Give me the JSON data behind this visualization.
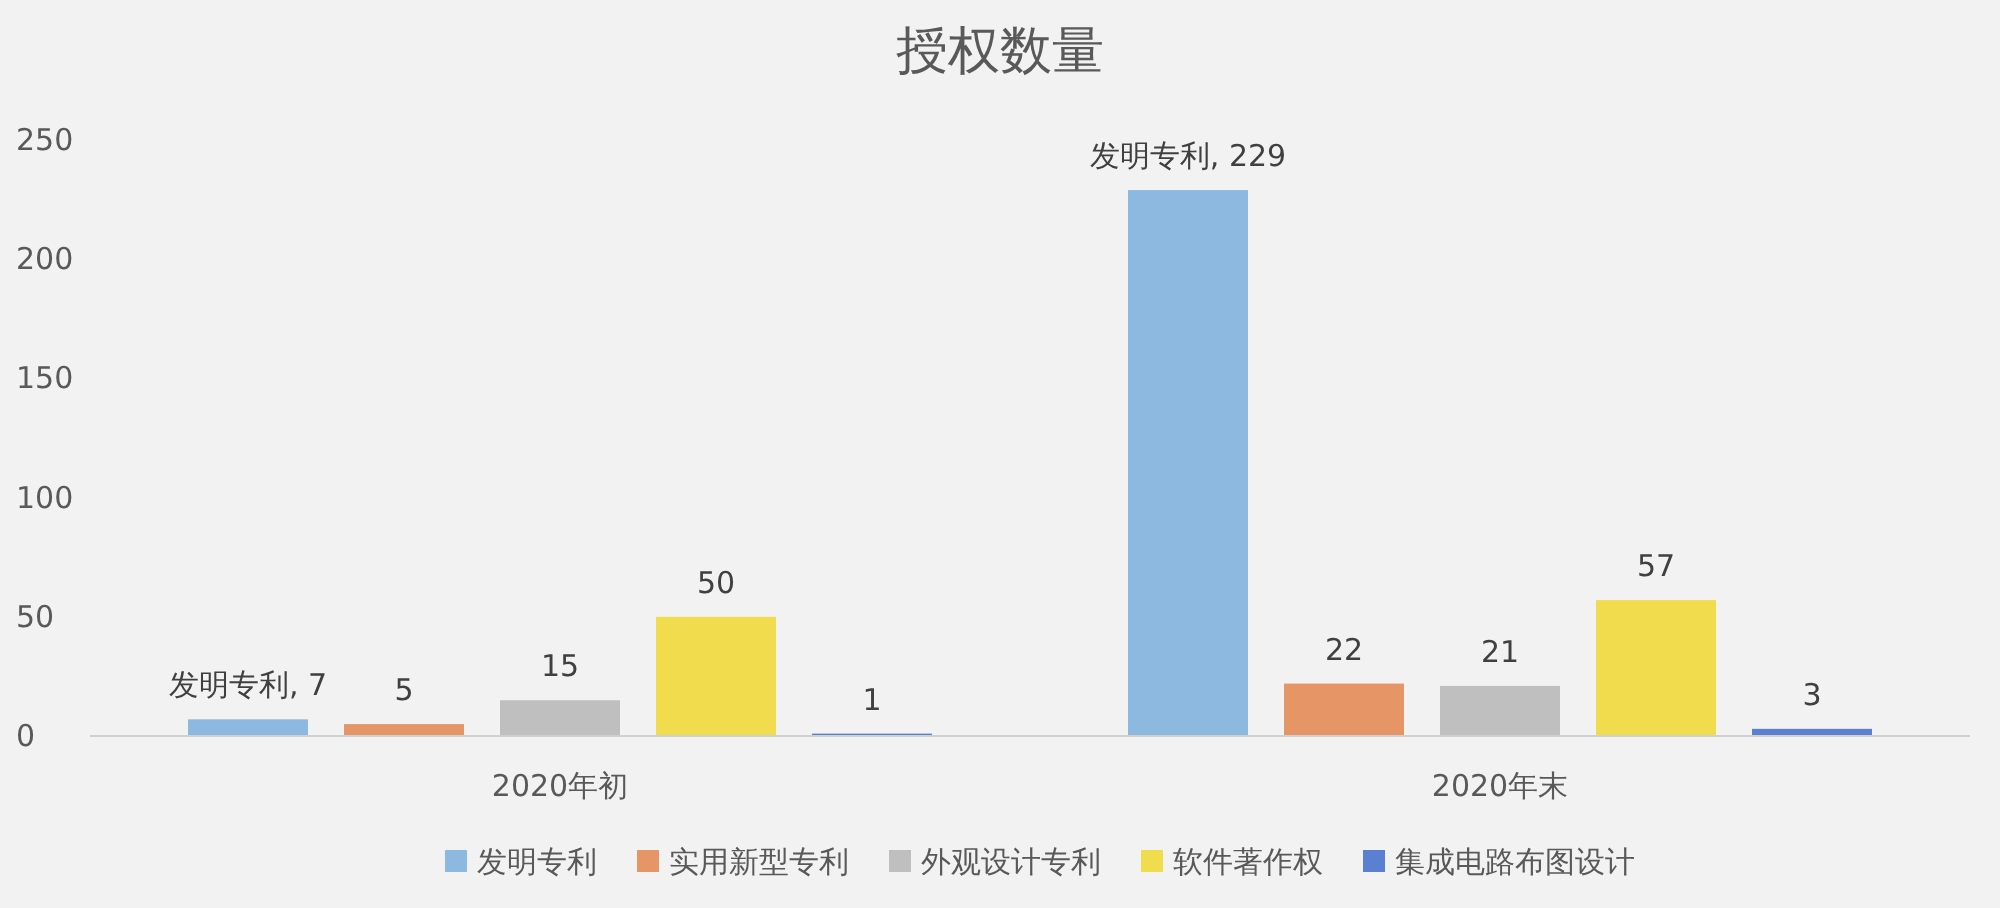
{
  "chart_data": {
    "type": "bar",
    "title": "授权数量",
    "categories": [
      "2020年初",
      "2020年末"
    ],
    "series": [
      {
        "name": "发明专利",
        "color": "#8db8e0",
        "values": [
          7,
          229
        ],
        "value_labels": [
          "发明专利, 7",
          "发明专利, 229"
        ]
      },
      {
        "name": "实用新型专利",
        "color": "#e69566",
        "values": [
          5,
          22
        ],
        "value_labels": [
          "5",
          "22"
        ]
      },
      {
        "name": "外观设计专利",
        "color": "#bfbfbf",
        "values": [
          15,
          21
        ],
        "value_labels": [
          "15",
          "21"
        ]
      },
      {
        "name": "软件著作权",
        "color": "#f0dc4c",
        "values": [
          50,
          57
        ],
        "value_labels": [
          "50",
          "57"
        ]
      },
      {
        "name": "集成电路布图设计",
        "color": "#5b7fd1",
        "values": [
          1,
          3
        ],
        "value_labels": [
          "1",
          "3"
        ]
      }
    ],
    "ylim": [
      0,
      250
    ],
    "yticks": [
      0,
      50,
      100,
      150,
      200,
      250
    ],
    "grid": false,
    "legend": "bottom"
  }
}
